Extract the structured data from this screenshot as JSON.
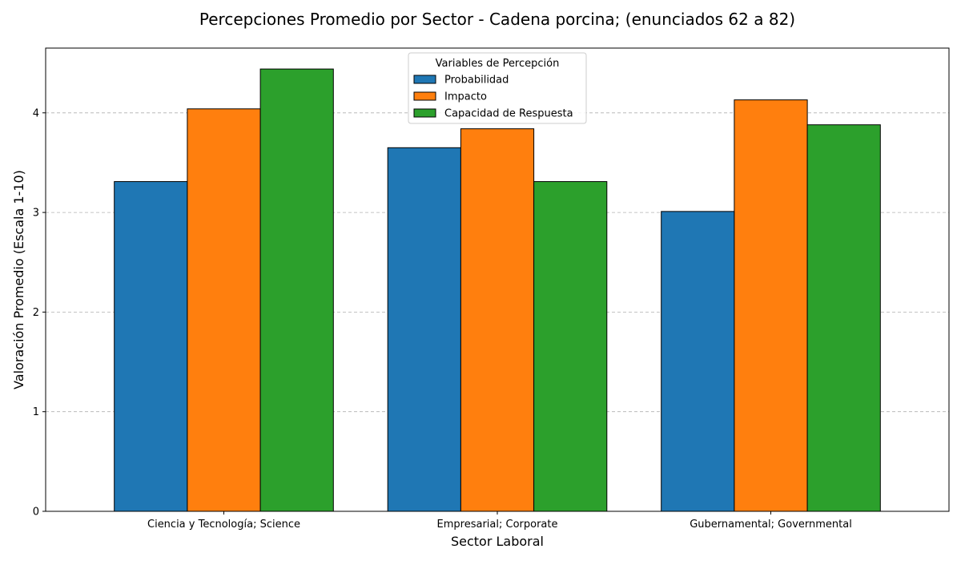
{
  "chart_data": {
    "type": "bar",
    "title": "Percepciones Promedio por Sector - Cadena porcina; (enunciados 62 a 82)",
    "xlabel": "Sector Laboral",
    "ylabel": "Valoración Promedio (Escala 1-10)",
    "categories": [
      "Ciencia y Tecnología; Science",
      "Empresarial; Corporate",
      "Gubernamental; Governmental"
    ],
    "series": [
      {
        "name": "Probabilidad",
        "color": "#1f77b4",
        "values": [
          3.31,
          3.65,
          3.01
        ]
      },
      {
        "name": "Impacto",
        "color": "#ff7f0e",
        "values": [
          4.04,
          3.84,
          4.13
        ]
      },
      {
        "name": "Capacidad de Respuesta",
        "color": "#2ca02c",
        "values": [
          4.44,
          3.31,
          3.88
        ]
      }
    ],
    "ylim": [
      0,
      4.65
    ],
    "yticks": [
      "0",
      "1",
      "2",
      "3",
      "4"
    ],
    "grid": "y-dashed",
    "legend": {
      "title": "Variables de Percepción",
      "placement": "top-center"
    }
  }
}
